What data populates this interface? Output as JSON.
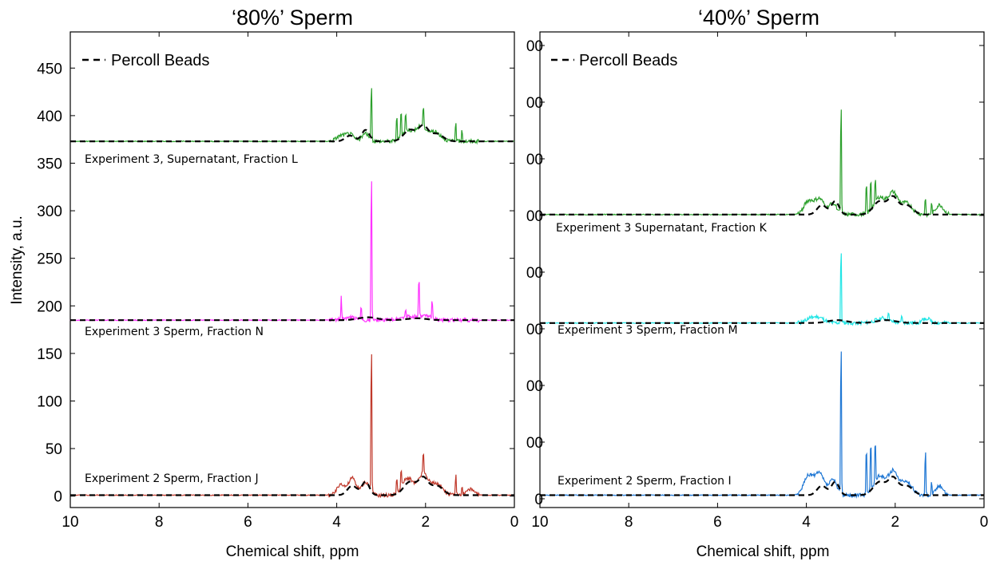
{
  "chart_data": [
    {
      "type": "line",
      "title": "‘80%’ Sperm",
      "xlabel": "Chemical shift, ppm",
      "ylabel": "Intensity, a.u.",
      "xlim": [
        10,
        0
      ],
      "xreversed": true,
      "ylim": [
        -12,
        488
      ],
      "x_ticks": [
        "10",
        "8",
        "6",
        "4",
        "2",
        "0"
      ],
      "y_ticks": [
        "0",
        "50",
        "100",
        "150",
        "200",
        "250",
        "300",
        "350",
        "400",
        "450"
      ],
      "legend": {
        "position": "top-left",
        "entries": [
          "Percoll Beads"
        ]
      },
      "grid": false,
      "series": [
        {
          "name": "Experiment 3, Supernatant, Fraction L",
          "color": "#2ca02c",
          "baseline": 373,
          "broad": [
            [
              3.9,
              0.15,
              6
            ],
            [
              3.7,
              0.12,
              7
            ],
            [
              3.35,
              0.12,
              8
            ],
            [
              2.4,
              0.18,
              12
            ],
            [
              2.1,
              0.15,
              15
            ],
            [
              1.8,
              0.2,
              10
            ]
          ],
          "peaks": [
            [
              3.22,
              67
            ],
            [
              2.65,
              30
            ],
            [
              2.55,
              32
            ],
            [
              2.45,
              22
            ],
            [
              2.05,
              25
            ],
            [
              1.32,
              25
            ],
            [
              1.18,
              15
            ]
          ]
        },
        {
          "name": "Percoll Beads (Fraction L)",
          "color": "#000000",
          "dashed": true,
          "baseline": 373,
          "broad": [
            [
              3.7,
              0.15,
              6
            ],
            [
              3.35,
              0.12,
              12
            ],
            [
              2.35,
              0.2,
              12
            ],
            [
              2.05,
              0.15,
              15
            ],
            [
              1.75,
              0.2,
              8
            ]
          ],
          "peaks": []
        },
        {
          "name": "Experiment 3 Sperm, Fraction N",
          "color": "#ff33ff",
          "baseline": 185,
          "broad": [
            [
              3.7,
              0.2,
              3
            ],
            [
              2.4,
              0.25,
              4
            ],
            [
              2.0,
              0.2,
              4
            ]
          ],
          "peaks": [
            [
              3.22,
              185
            ],
            [
              3.9,
              25
            ],
            [
              3.45,
              15
            ],
            [
              2.15,
              50
            ],
            [
              1.85,
              22
            ],
            [
              2.45,
              8
            ]
          ]
        },
        {
          "name": "Percoll Beads (Fraction N)",
          "color": "#000000",
          "dashed": true,
          "baseline": 185,
          "broad": [
            [
              3.3,
              0.3,
              3
            ],
            [
              2.2,
              0.3,
              2
            ]
          ],
          "peaks": []
        },
        {
          "name": "Experiment 2 Sperm, Fraction J",
          "color": "#c0392b",
          "baseline": 1,
          "broad": [
            [
              3.9,
              0.12,
              12
            ],
            [
              3.65,
              0.12,
              18
            ],
            [
              3.35,
              0.12,
              14
            ],
            [
              2.4,
              0.18,
              18
            ],
            [
              2.05,
              0.15,
              22
            ],
            [
              1.75,
              0.18,
              12
            ],
            [
              1.0,
              0.12,
              6
            ]
          ],
          "peaks": [
            [
              3.22,
              180
            ],
            [
              2.65,
              18
            ],
            [
              2.55,
              22
            ],
            [
              2.05,
              28
            ],
            [
              1.32,
              25
            ],
            [
              1.18,
              10
            ]
          ]
        },
        {
          "name": "Percoll Beads (Fraction J)",
          "color": "#000000",
          "dashed": true,
          "baseline": 1,
          "broad": [
            [
              3.65,
              0.15,
              10
            ],
            [
              3.35,
              0.12,
              14
            ],
            [
              2.35,
              0.2,
              14
            ],
            [
              2.05,
              0.15,
              17
            ],
            [
              1.75,
              0.2,
              10
            ]
          ],
          "peaks": []
        }
      ]
    },
    {
      "type": "line",
      "title": "‘40%’ Sperm",
      "xlabel": "Chemical shift, ppm",
      "ylabel": "",
      "xlim": [
        10,
        0
      ],
      "xreversed": true,
      "ylim": [
        -12,
        488
      ],
      "x_ticks": [
        "10",
        "8",
        "6",
        "4",
        "2",
        "0"
      ],
      "y_ticks": [
        "0",
        "00",
        "00",
        "00",
        "00",
        "00",
        "00",
        "00",
        "00"
      ],
      "legend": {
        "position": "top-left",
        "entries": [
          "Percoll Beads"
        ]
      },
      "grid": false,
      "series": [
        {
          "name": "Experiment 3 Supernatant, Fraction K",
          "color": "#2ca02c",
          "baseline": 296,
          "broad": [
            [
              3.95,
              0.15,
              14
            ],
            [
              3.7,
              0.15,
              16
            ],
            [
              3.4,
              0.12,
              12
            ],
            [
              2.35,
              0.18,
              18
            ],
            [
              2.05,
              0.15,
              22
            ],
            [
              1.75,
              0.18,
              12
            ],
            [
              1.0,
              0.12,
              10
            ]
          ],
          "peaks": [
            [
              3.22,
              135
            ],
            [
              2.65,
              40
            ],
            [
              2.55,
              40
            ],
            [
              2.45,
              30
            ],
            [
              1.32,
              22
            ],
            [
              1.18,
              12
            ]
          ]
        },
        {
          "name": "Percoll Beads (Fraction K)",
          "color": "#000000",
          "dashed": true,
          "baseline": 296,
          "broad": [
            [
              3.65,
              0.15,
              10
            ],
            [
              3.35,
              0.12,
              14
            ],
            [
              2.35,
              0.2,
              14
            ],
            [
              2.05,
              0.15,
              17
            ],
            [
              1.75,
              0.2,
              10
            ]
          ],
          "peaks": []
        },
        {
          "name": "Experiment 3 Sperm, Fraction M",
          "color": "#22e5e5",
          "baseline": 182,
          "broad": [
            [
              3.9,
              0.15,
              5
            ],
            [
              3.7,
              0.15,
              5
            ],
            [
              2.3,
              0.2,
              5
            ],
            [
              1.3,
              0.12,
              5
            ]
          ],
          "peaks": [
            [
              3.22,
              92
            ],
            [
              2.15,
              12
            ],
            [
              1.85,
              10
            ]
          ]
        },
        {
          "name": "Percoll Beads (Fraction M)",
          "color": "#000000",
          "dashed": true,
          "baseline": 182,
          "broad": [
            [
              3.3,
              0.3,
              3
            ],
            [
              2.2,
              0.3,
              3
            ]
          ],
          "peaks": []
        },
        {
          "name": "Experiment 2 Sperm, Fraction I",
          "color": "#1f77d4",
          "baseline": 1,
          "broad": [
            [
              3.95,
              0.15,
              20
            ],
            [
              3.7,
              0.15,
              22
            ],
            [
              3.4,
              0.12,
              16
            ],
            [
              2.35,
              0.18,
              20
            ],
            [
              2.05,
              0.15,
              24
            ],
            [
              1.75,
              0.18,
              14
            ],
            [
              1.0,
              0.12,
              10
            ]
          ],
          "peaks": [
            [
              3.22,
              190
            ],
            [
              2.65,
              60
            ],
            [
              2.55,
              62
            ],
            [
              2.45,
              50
            ],
            [
              1.32,
              55
            ],
            [
              1.18,
              15
            ]
          ]
        },
        {
          "name": "Percoll Beads (Fraction I)",
          "color": "#000000",
          "dashed": true,
          "baseline": 1,
          "broad": [
            [
              3.65,
              0.15,
              10
            ],
            [
              3.35,
              0.12,
              14
            ],
            [
              2.35,
              0.2,
              14
            ],
            [
              2.05,
              0.15,
              17
            ],
            [
              1.75,
              0.2,
              10
            ]
          ],
          "peaks": []
        }
      ],
      "y_ticks_values": [
        0,
        60,
        120,
        180,
        240,
        300,
        360,
        420,
        480
      ]
    }
  ],
  "annotations": {
    "left": [
      "Experiment 3, Supernatant, Fraction L",
      "Experiment 3 Sperm, Fraction N",
      "Experiment 2 Sperm, Fraction J"
    ],
    "right": [
      "Experiment 3 Supernatant, Fraction K",
      "Experiment 3 Sperm, Fraction M",
      "Experiment 2 Sperm, Fraction I"
    ]
  },
  "legend_label": "Percoll Beads"
}
